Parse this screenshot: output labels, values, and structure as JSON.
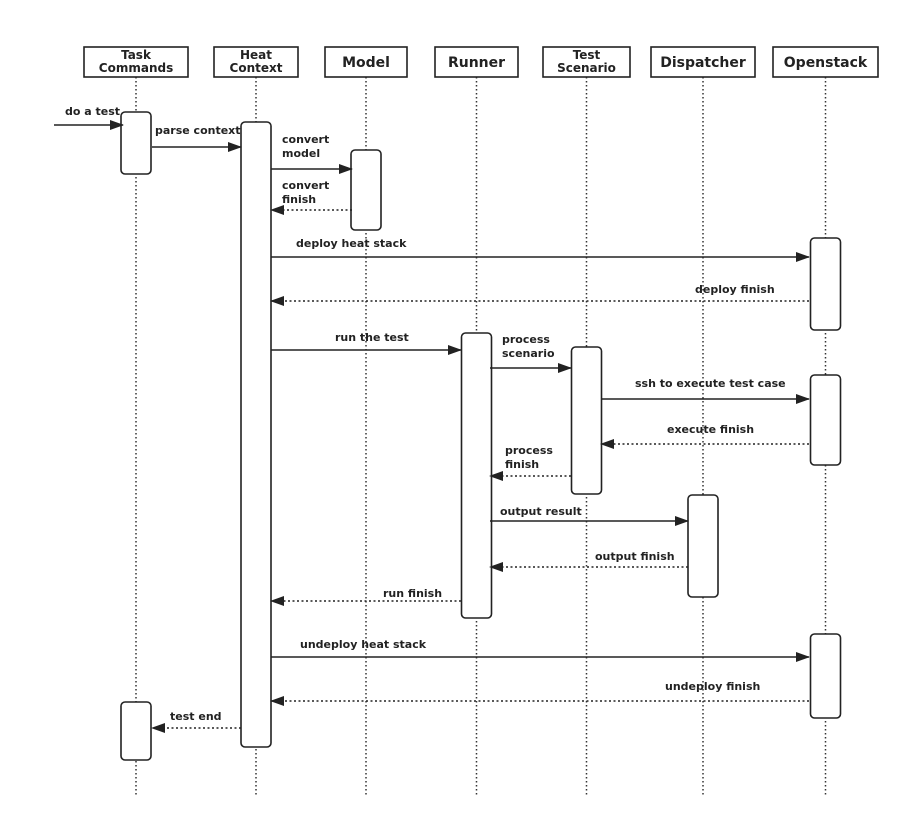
{
  "participants": [
    {
      "id": "task",
      "lines": [
        "Task",
        "Commands"
      ]
    },
    {
      "id": "heat",
      "lines": [
        "Heat",
        "Context"
      ]
    },
    {
      "id": "model",
      "lines": [
        "Model"
      ]
    },
    {
      "id": "runner",
      "lines": [
        "Runner"
      ]
    },
    {
      "id": "scenario",
      "lines": [
        "Test",
        "Scenario"
      ]
    },
    {
      "id": "dispatcher",
      "lines": [
        "Dispatcher"
      ]
    },
    {
      "id": "openstack",
      "lines": [
        "Openstack"
      ]
    }
  ],
  "messages": [
    {
      "from": "external",
      "to": "task",
      "type": "call",
      "lines": [
        "do a test"
      ]
    },
    {
      "from": "task",
      "to": "heat",
      "type": "call",
      "lines": [
        "parse context"
      ]
    },
    {
      "from": "heat",
      "to": "model",
      "type": "call",
      "lines": [
        "convert",
        "model"
      ]
    },
    {
      "from": "model",
      "to": "heat",
      "type": "return",
      "lines": [
        "convert",
        "finish"
      ]
    },
    {
      "from": "heat",
      "to": "openstack",
      "type": "call",
      "lines": [
        "deploy heat stack"
      ]
    },
    {
      "from": "openstack",
      "to": "heat",
      "type": "return",
      "lines": [
        "deploy finish"
      ]
    },
    {
      "from": "heat",
      "to": "runner",
      "type": "call",
      "lines": [
        "run the test"
      ]
    },
    {
      "from": "runner",
      "to": "scenario",
      "type": "call",
      "lines": [
        "process",
        "scenario"
      ]
    },
    {
      "from": "scenario",
      "to": "openstack",
      "type": "call",
      "lines": [
        "ssh to execute test case"
      ]
    },
    {
      "from": "openstack",
      "to": "scenario",
      "type": "return",
      "lines": [
        "execute finish"
      ]
    },
    {
      "from": "scenario",
      "to": "runner",
      "type": "return",
      "lines": [
        "process",
        "finish"
      ]
    },
    {
      "from": "runner",
      "to": "dispatcher",
      "type": "call",
      "lines": [
        "output result"
      ]
    },
    {
      "from": "dispatcher",
      "to": "runner",
      "type": "return",
      "lines": [
        "output finish"
      ]
    },
    {
      "from": "runner",
      "to": "heat",
      "type": "return",
      "lines": [
        "run finish"
      ]
    },
    {
      "from": "heat",
      "to": "openstack",
      "type": "call",
      "lines": [
        "undeploy heat stack"
      ]
    },
    {
      "from": "openstack",
      "to": "heat",
      "type": "return",
      "lines": [
        "undeploy finish"
      ]
    },
    {
      "from": "heat",
      "to": "task",
      "type": "return",
      "lines": [
        "test end"
      ]
    }
  ]
}
